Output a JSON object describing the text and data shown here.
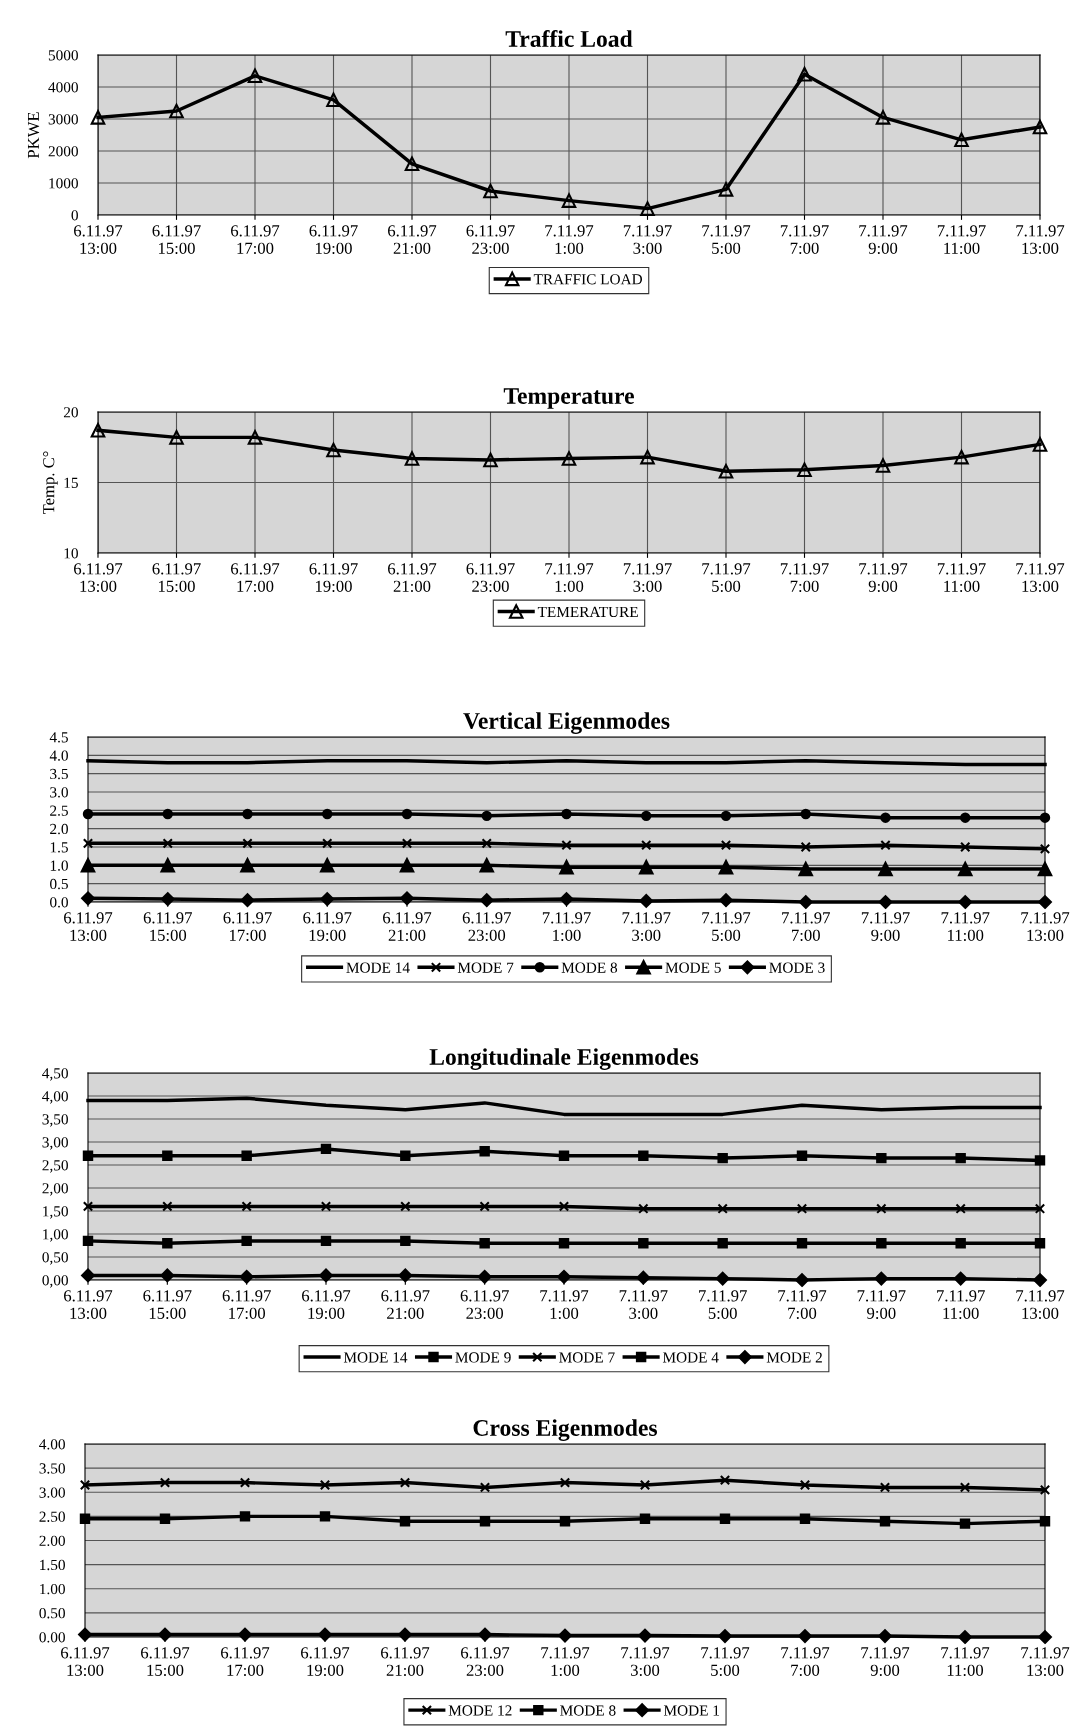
{
  "chart_data": [
    {
      "type": "line",
      "title": "Traffic Load",
      "ylabel": "PKWE",
      "categories": [
        "6.11.97\n13:00",
        "6.11.97\n15:00",
        "6.11.97\n17:00",
        "6.11.97\n19:00",
        "6.11.97\n21:00",
        "6.11.97\n23:00",
        "7.11.97\n1:00",
        "7.11.97\n3:00",
        "7.11.97\n5:00",
        "7.11.97\n7:00",
        "7.11.97\n9:00",
        "7.11.97\n11:00",
        "7.11.97\n13:00"
      ],
      "series": [
        {
          "name": "TRAFFIC LOAD",
          "color": "#000000",
          "marker": "triangle",
          "values": [
            3050,
            3250,
            4350,
            3600,
            1600,
            750,
            450,
            200,
            800,
            4400,
            3050,
            2350,
            2750
          ]
        }
      ],
      "ylim": [
        0,
        5000
      ],
      "yticks": [
        0,
        1000,
        2000,
        3000,
        4000,
        5000
      ],
      "grid": true,
      "legend": "bottom",
      "line_style": "solid"
    },
    {
      "type": "line",
      "title": "Temperature",
      "ylabel": "Temp. C°",
      "categories": [
        "6.11.97\n13:00",
        "6.11.97\n15:00",
        "6.11.97\n17:00",
        "6.11.97\n19:00",
        "6.11.97\n21:00",
        "6.11.97\n23:00",
        "7.11.97\n1:00",
        "7.11.97\n3:00",
        "7.11.97\n5:00",
        "7.11.97\n7:00",
        "7.11.97\n9:00",
        "7.11.97\n11:00",
        "7.11.97\n13:00"
      ],
      "series": [
        {
          "name": "TEMERATURE",
          "color": "#000000",
          "marker": "triangle",
          "values": [
            18.7,
            18.2,
            18.2,
            17.3,
            16.7,
            16.6,
            16.7,
            16.8,
            15.8,
            15.9,
            16.2,
            16.8,
            17.7
          ]
        }
      ],
      "ylim": [
        10,
        20
      ],
      "yticks": [
        10,
        15,
        20
      ],
      "grid": true,
      "legend": "bottom",
      "line_style": "solid"
    },
    {
      "type": "line",
      "title": "Vertical Eigenmodes",
      "categories": [
        "6.11.97\n13:00",
        "6.11.97\n15:00",
        "6.11.97\n17:00",
        "6.11.97\n19:00",
        "6.11.97\n21:00",
        "6.11.97\n23:00",
        "7.11.97\n1:00",
        "7.11.97\n3:00",
        "7.11.97\n5:00",
        "7.11.97\n7:00",
        "7.11.97\n9:00",
        "7.11.97\n11:00",
        "7.11.97\n13:00"
      ],
      "series": [
        {
          "name": "MODE 14",
          "color": "#000000",
          "marker": "none",
          "values": [
            3.85,
            3.8,
            3.8,
            3.85,
            3.85,
            3.8,
            3.85,
            3.8,
            3.8,
            3.85,
            3.8,
            3.75,
            3.75
          ]
        },
        {
          "name": "MODE 7",
          "color": "#000000",
          "marker": "cross",
          "values": [
            1.6,
            1.6,
            1.6,
            1.6,
            1.6,
            1.6,
            1.55,
            1.55,
            1.55,
            1.5,
            1.55,
            1.5,
            1.45
          ]
        },
        {
          "name": "MODE 8",
          "color": "#000000",
          "marker": "circle",
          "values": [
            2.4,
            2.4,
            2.4,
            2.4,
            2.4,
            2.35,
            2.4,
            2.35,
            2.35,
            2.4,
            2.3,
            2.3,
            2.3
          ]
        },
        {
          "name": "MODE 5",
          "color": "#000000",
          "marker": "triangle",
          "values": [
            1.0,
            1.0,
            1.0,
            1.0,
            1.0,
            1.0,
            0.95,
            0.95,
            0.95,
            0.9,
            0.9,
            0.9,
            0.9
          ]
        },
        {
          "name": "MODE 3",
          "color": "#000000",
          "marker": "diamond",
          "values": [
            0.1,
            0.08,
            0.05,
            0.08,
            0.1,
            0.05,
            0.08,
            0.03,
            0.05,
            0.0,
            0.0,
            0.0,
            0.0
          ]
        }
      ],
      "ylim": [
        0,
        4.5
      ],
      "yticks": [
        {
          "value": 0,
          "label": "0.0"
        },
        {
          "value": 0.5,
          "label": "0.5"
        },
        {
          "value": 1,
          "label": "1.0"
        },
        {
          "value": 1.5,
          "label": "1.5"
        },
        {
          "value": 2,
          "label": "2.0"
        },
        {
          "value": 2.5,
          "label": "2.5"
        },
        {
          "value": 3,
          "label": "3.0"
        },
        {
          "value": 3.5,
          "label": "3.5"
        },
        {
          "value": 4,
          "label": "4.0"
        },
        {
          "value": 4.5,
          "label": "4.5"
        }
      ],
      "grid": "y",
      "legend": "bottom",
      "line_style": "solid"
    },
    {
      "type": "line",
      "title": "Longitudinale Eigenmodes",
      "categories": [
        "6.11.97\n13:00",
        "6.11.97\n15:00",
        "6.11.97\n17:00",
        "6.11.97\n19:00",
        "6.11.97\n21:00",
        "6.11.97\n23:00",
        "7.11.97\n1:00",
        "7.11.97\n3:00",
        "7.11.97\n5:00",
        "7.11.97\n7:00",
        "7.11.97\n9:00",
        "7.11.97\n11:00",
        "7.11.97\n13:00"
      ],
      "series": [
        {
          "name": "MODE 14",
          "color": "#000000",
          "marker": "none",
          "values": [
            3.9,
            3.9,
            3.95,
            3.8,
            3.7,
            3.85,
            3.6,
            3.6,
            3.6,
            3.8,
            3.7,
            3.75,
            3.75
          ]
        },
        {
          "name": "MODE 9",
          "color": "#000000",
          "marker": "square",
          "values": [
            2.7,
            2.7,
            2.7,
            2.85,
            2.7,
            2.8,
            2.7,
            2.7,
            2.65,
            2.7,
            2.65,
            2.65,
            2.6
          ]
        },
        {
          "name": "MODE 7",
          "color": "#000000",
          "marker": "cross",
          "values": [
            1.6,
            1.6,
            1.6,
            1.6,
            1.6,
            1.6,
            1.6,
            1.55,
            1.55,
            1.55,
            1.55,
            1.55,
            1.55
          ]
        },
        {
          "name": "MODE 4",
          "color": "#000000",
          "marker": "square",
          "values": [
            0.85,
            0.8,
            0.85,
            0.85,
            0.85,
            0.8,
            0.8,
            0.8,
            0.8,
            0.8,
            0.8,
            0.8,
            0.8
          ]
        },
        {
          "name": "MODE 2",
          "color": "#000000",
          "marker": "diamond",
          "values": [
            0.1,
            0.1,
            0.07,
            0.1,
            0.1,
            0.07,
            0.07,
            0.05,
            0.03,
            0.0,
            0.03,
            0.03,
            0.0
          ]
        }
      ],
      "ylim": [
        0,
        4.5
      ],
      "yticks": [
        {
          "value": 0,
          "label": "0,00"
        },
        {
          "value": 0.5,
          "label": "0,50"
        },
        {
          "value": 1,
          "label": "1,00"
        },
        {
          "value": 1.5,
          "label": "1,50"
        },
        {
          "value": 2,
          "label": "2,00"
        },
        {
          "value": 2.5,
          "label": "2,50"
        },
        {
          "value": 3,
          "label": "3,00"
        },
        {
          "value": 3.5,
          "label": "3,50"
        },
        {
          "value": 4,
          "label": "4,00"
        },
        {
          "value": 4.5,
          "label": "4,50"
        }
      ],
      "grid": "y",
      "legend": "bottom",
      "line_style": "solid"
    },
    {
      "type": "line",
      "title": "Cross Eigenmodes",
      "categories": [
        "6.11.97\n13:00",
        "6.11.97\n15:00",
        "6.11.97\n17:00",
        "6.11.97\n19:00",
        "6.11.97\n21:00",
        "6.11.97\n23:00",
        "7.11.97\n1:00",
        "7.11.97\n3:00",
        "7.11.97\n5:00",
        "7.11.97\n7:00",
        "7.11.97\n9:00",
        "7.11.97\n11:00",
        "7.11.97\n13:00"
      ],
      "series": [
        {
          "name": "MODE 12",
          "color": "#000000",
          "marker": "cross",
          "values": [
            3.15,
            3.2,
            3.2,
            3.15,
            3.2,
            3.1,
            3.2,
            3.15,
            3.25,
            3.15,
            3.1,
            3.1,
            3.05
          ]
        },
        {
          "name": "MODE 8",
          "color": "#000000",
          "marker": "square",
          "values": [
            2.45,
            2.45,
            2.5,
            2.5,
            2.4,
            2.4,
            2.4,
            2.45,
            2.45,
            2.45,
            2.4,
            2.35,
            2.4
          ]
        },
        {
          "name": "MODE 1",
          "color": "#000000",
          "marker": "diamond",
          "values": [
            0.05,
            0.05,
            0.05,
            0.05,
            0.05,
            0.05,
            0.03,
            0.03,
            0.02,
            0.02,
            0.02,
            0.0,
            0.0
          ]
        }
      ],
      "ylim": [
        0,
        4
      ],
      "yticks": [
        {
          "value": 0,
          "label": "0.00"
        },
        {
          "value": 0.5,
          "label": "0.50"
        },
        {
          "value": 1,
          "label": "1.00"
        },
        {
          "value": 1.5,
          "label": "1.50"
        },
        {
          "value": 2,
          "label": "2.00"
        },
        {
          "value": 2.5,
          "label": "2.50"
        },
        {
          "value": 3,
          "label": "3.00"
        },
        {
          "value": 3.5,
          "label": "3.50"
        },
        {
          "value": 4,
          "label": "4.00"
        }
      ],
      "grid": "y",
      "legend": "bottom",
      "line_style": "solid"
    }
  ]
}
